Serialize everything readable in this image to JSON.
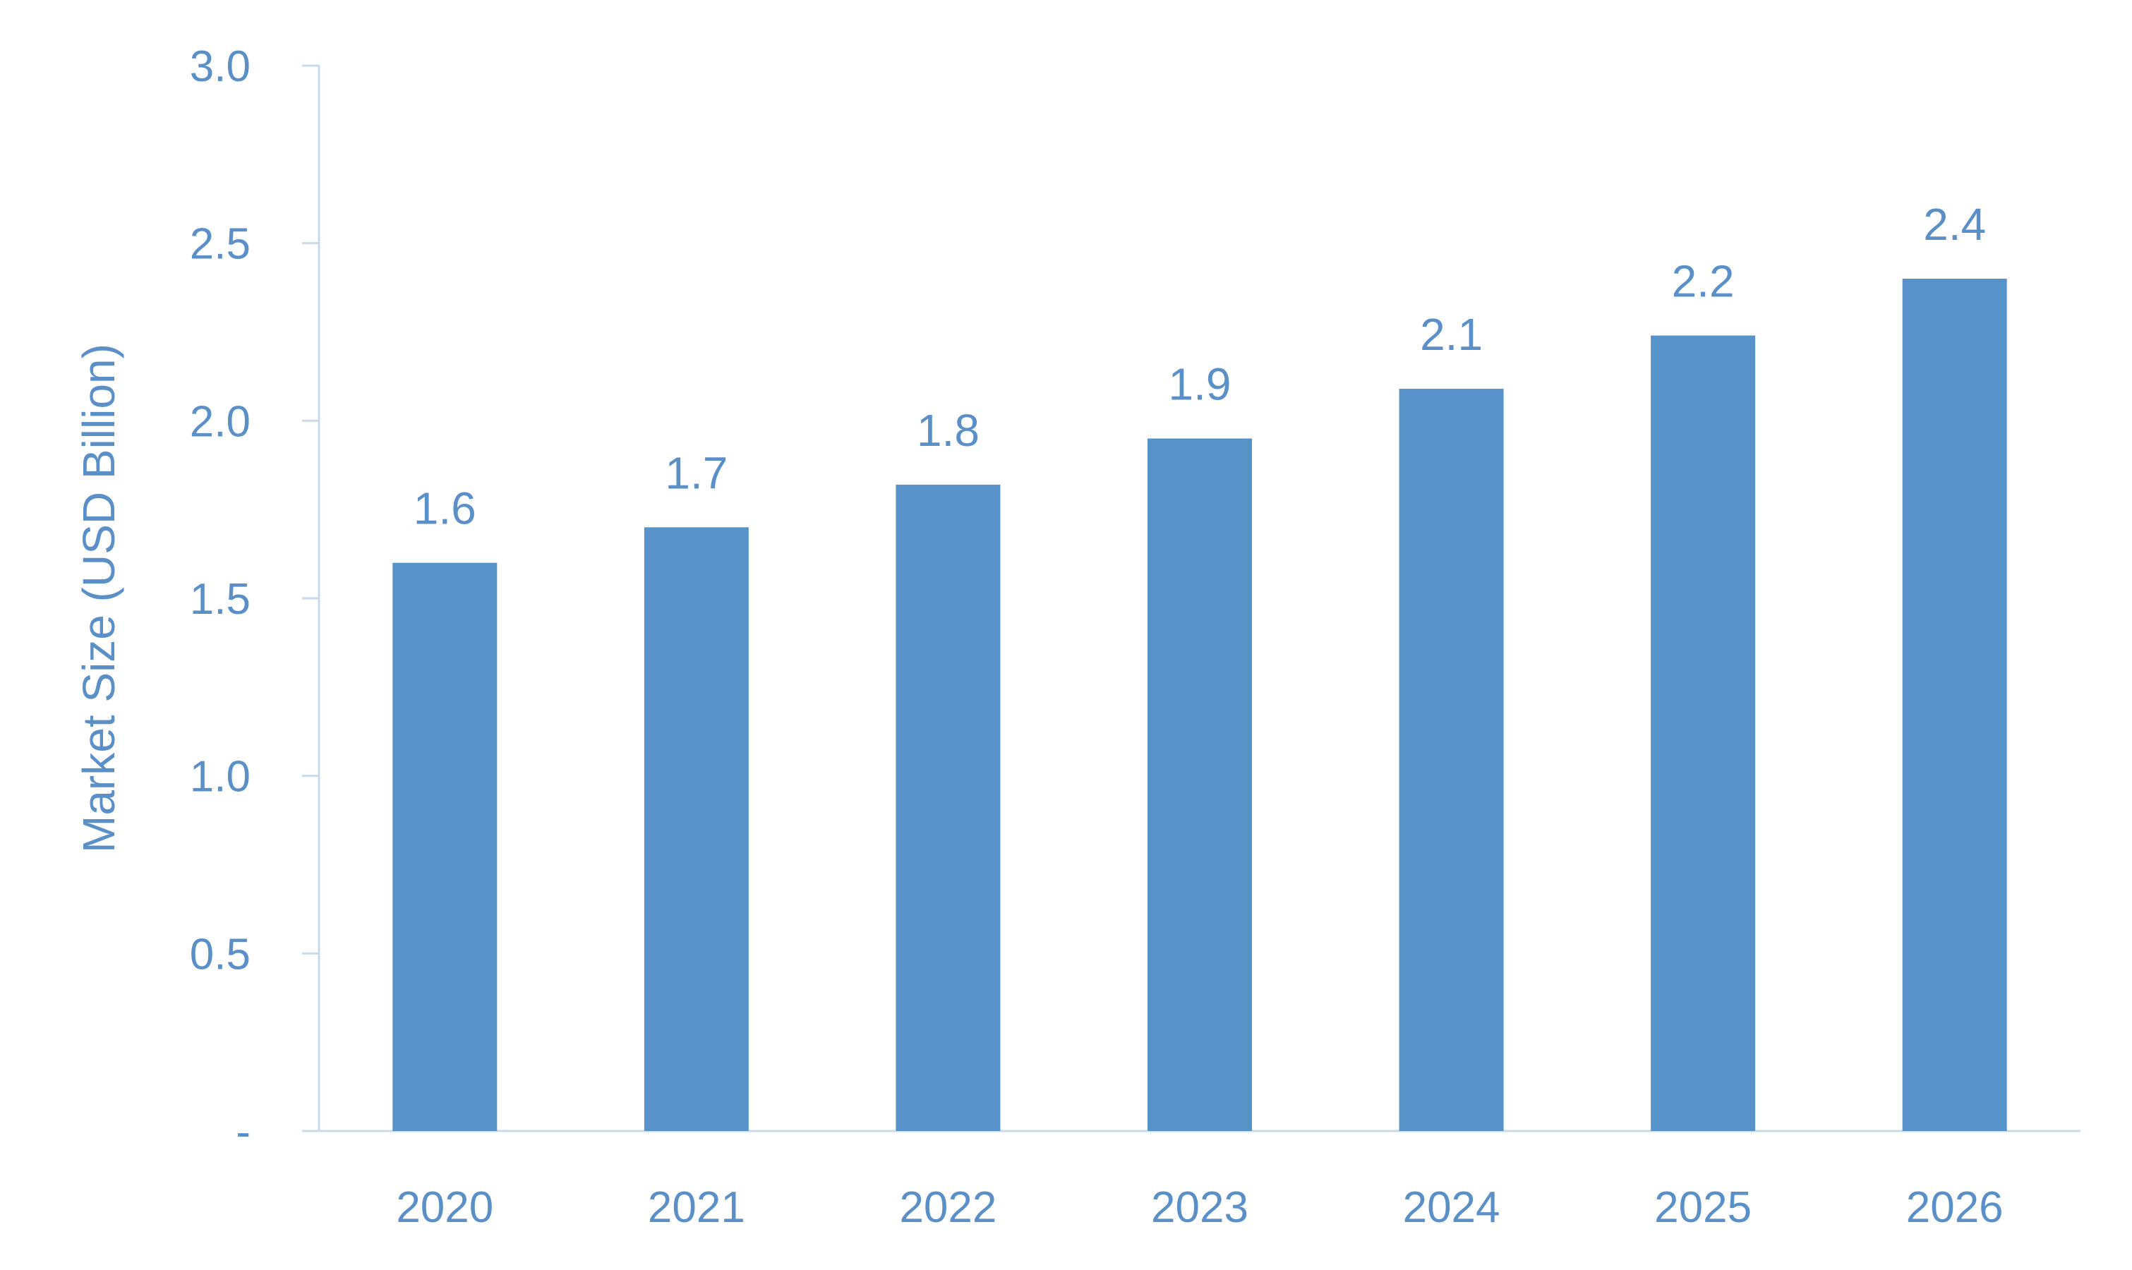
{
  "chart_data": {
    "type": "bar",
    "title": "",
    "xlabel": "",
    "ylabel": "Market Size (USD Billion)",
    "categories": [
      "2020",
      "2021",
      "2022",
      "2023",
      "2024",
      "2025",
      "2026"
    ],
    "values": [
      1.6,
      1.7,
      1.82,
      1.95,
      2.09,
      2.24,
      2.4
    ],
    "data_labels": [
      "1.6",
      "1.7",
      "1.8",
      "1.9",
      "2.1",
      "2.2",
      "2.4"
    ],
    "ylim": [
      0,
      3.0
    ],
    "yticks": [
      0,
      0.5,
      1.0,
      1.5,
      2.0,
      2.5,
      3.0
    ],
    "ytick_labels": [
      "-",
      "0.5",
      "1.0",
      "1.5",
      "2.0",
      "2.5",
      "3.0"
    ],
    "grid": false,
    "legend": "none",
    "colors": {
      "bar": "#5793c9",
      "text": "#5b8fc7",
      "axis": "#c9dbea"
    }
  }
}
